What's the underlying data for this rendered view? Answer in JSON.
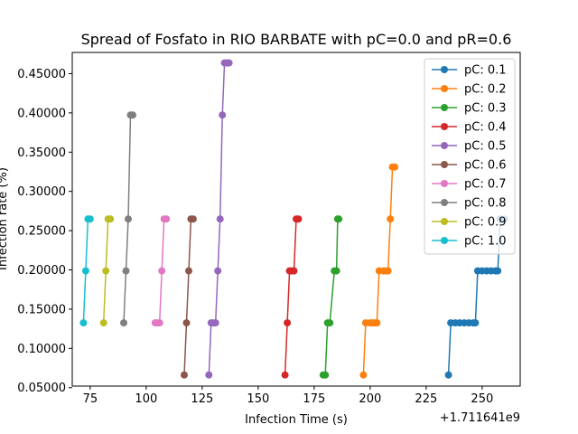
{
  "chart_data": {
    "type": "line",
    "title": "Spread of Fosfato in RIO BARBATE with pC=0.0 and pR=0.6",
    "xlabel": "Infection Time (s)",
    "ylabel": "Infection rate (%)",
    "x_offset_text": "+1.711641e9",
    "xlim": [
      67,
      267
    ],
    "ylim": [
      0.052,
      0.477
    ],
    "xticks": [
      75,
      100,
      125,
      150,
      175,
      200,
      225,
      250
    ],
    "xtick_labels": [
      "75",
      "100",
      "125",
      "150",
      "175",
      "200",
      "225",
      "250"
    ],
    "yticks": [
      0.05,
      0.1,
      0.15,
      0.2,
      0.25,
      0.3,
      0.35,
      0.4,
      0.45
    ],
    "ytick_labels": [
      "0.05000",
      "0.10000",
      "0.15000",
      "0.20000",
      "0.25000",
      "0.30000",
      "0.35000",
      "0.40000",
      "0.45000"
    ],
    "legend_position": "top-right",
    "series": [
      {
        "name": "pC: 0.1",
        "color": "#1f77b4",
        "points": [
          [
            235,
            0.0662
          ],
          [
            236,
            0.1325
          ],
          [
            238,
            0.1325
          ],
          [
            240,
            0.1325
          ],
          [
            242,
            0.1325
          ],
          [
            244,
            0.1325
          ],
          [
            246,
            0.1325
          ],
          [
            247,
            0.1325
          ],
          [
            248,
            0.1987
          ],
          [
            250,
            0.1987
          ],
          [
            252,
            0.1987
          ],
          [
            254,
            0.1987
          ],
          [
            256,
            0.1987
          ],
          [
            257,
            0.1987
          ],
          [
            258,
            0.2649
          ],
          [
            260,
            0.2649
          ]
        ]
      },
      {
        "name": "pC: 0.2",
        "color": "#ff7f0e",
        "points": [
          [
            197,
            0.0662
          ],
          [
            198,
            0.1325
          ],
          [
            200,
            0.1325
          ],
          [
            201,
            0.1325
          ],
          [
            202,
            0.1325
          ],
          [
            203,
            0.1325
          ],
          [
            204,
            0.1987
          ],
          [
            206,
            0.1987
          ],
          [
            207,
            0.1987
          ],
          [
            208,
            0.1987
          ],
          [
            209,
            0.2649
          ],
          [
            210,
            0.3311
          ],
          [
            211,
            0.3311
          ]
        ]
      },
      {
        "name": "pC: 0.3",
        "color": "#2ca02c",
        "points": [
          [
            179,
            0.0662
          ],
          [
            180,
            0.0662
          ],
          [
            181,
            0.1325
          ],
          [
            182,
            0.1325
          ],
          [
            184,
            0.1987
          ],
          [
            185,
            0.1987
          ],
          [
            185.5,
            0.2649
          ],
          [
            186,
            0.2649
          ]
        ]
      },
      {
        "name": "pC: 0.4",
        "color": "#d62728",
        "points": [
          [
            162,
            0.0662
          ],
          [
            163,
            0.1325
          ],
          [
            164,
            0.1987
          ],
          [
            165,
            0.1987
          ],
          [
            166,
            0.1987
          ],
          [
            167,
            0.2649
          ],
          [
            168,
            0.2649
          ]
        ]
      },
      {
        "name": "pC: 0.5",
        "color": "#9467bd",
        "points": [
          [
            128,
            0.0662
          ],
          [
            129,
            0.1325
          ],
          [
            130,
            0.1325
          ],
          [
            131,
            0.1325
          ],
          [
            132,
            0.1987
          ],
          [
            133,
            0.2649
          ],
          [
            134,
            0.3973
          ],
          [
            135,
            0.4636
          ],
          [
            136,
            0.4636
          ],
          [
            137,
            0.4636
          ]
        ]
      },
      {
        "name": "pC: 0.6",
        "color": "#8c564b",
        "points": [
          [
            117,
            0.0662
          ],
          [
            118,
            0.1325
          ],
          [
            119,
            0.1987
          ],
          [
            120,
            0.2649
          ],
          [
            121,
            0.2649
          ]
        ]
      },
      {
        "name": "pC: 0.7",
        "color": "#e377c2",
        "points": [
          [
            104,
            0.1325
          ],
          [
            105,
            0.1325
          ],
          [
            106,
            0.1325
          ],
          [
            107,
            0.1987
          ],
          [
            108,
            0.2649
          ],
          [
            109,
            0.2649
          ]
        ]
      },
      {
        "name": "pC: 0.8",
        "color": "#7f7f7f",
        "points": [
          [
            90,
            0.1325
          ],
          [
            91,
            0.1987
          ],
          [
            92,
            0.2649
          ],
          [
            93,
            0.3973
          ],
          [
            94,
            0.3973
          ]
        ]
      },
      {
        "name": "pC: 0.9",
        "color": "#bcbd22",
        "points": [
          [
            81,
            0.1325
          ],
          [
            82,
            0.1987
          ],
          [
            83,
            0.2649
          ],
          [
            84,
            0.2649
          ]
        ]
      },
      {
        "name": "pC: 1.0",
        "color": "#17becf",
        "points": [
          [
            72,
            0.1325
          ],
          [
            73,
            0.1987
          ],
          [
            74,
            0.2649
          ],
          [
            75,
            0.2649
          ]
        ]
      }
    ]
  }
}
